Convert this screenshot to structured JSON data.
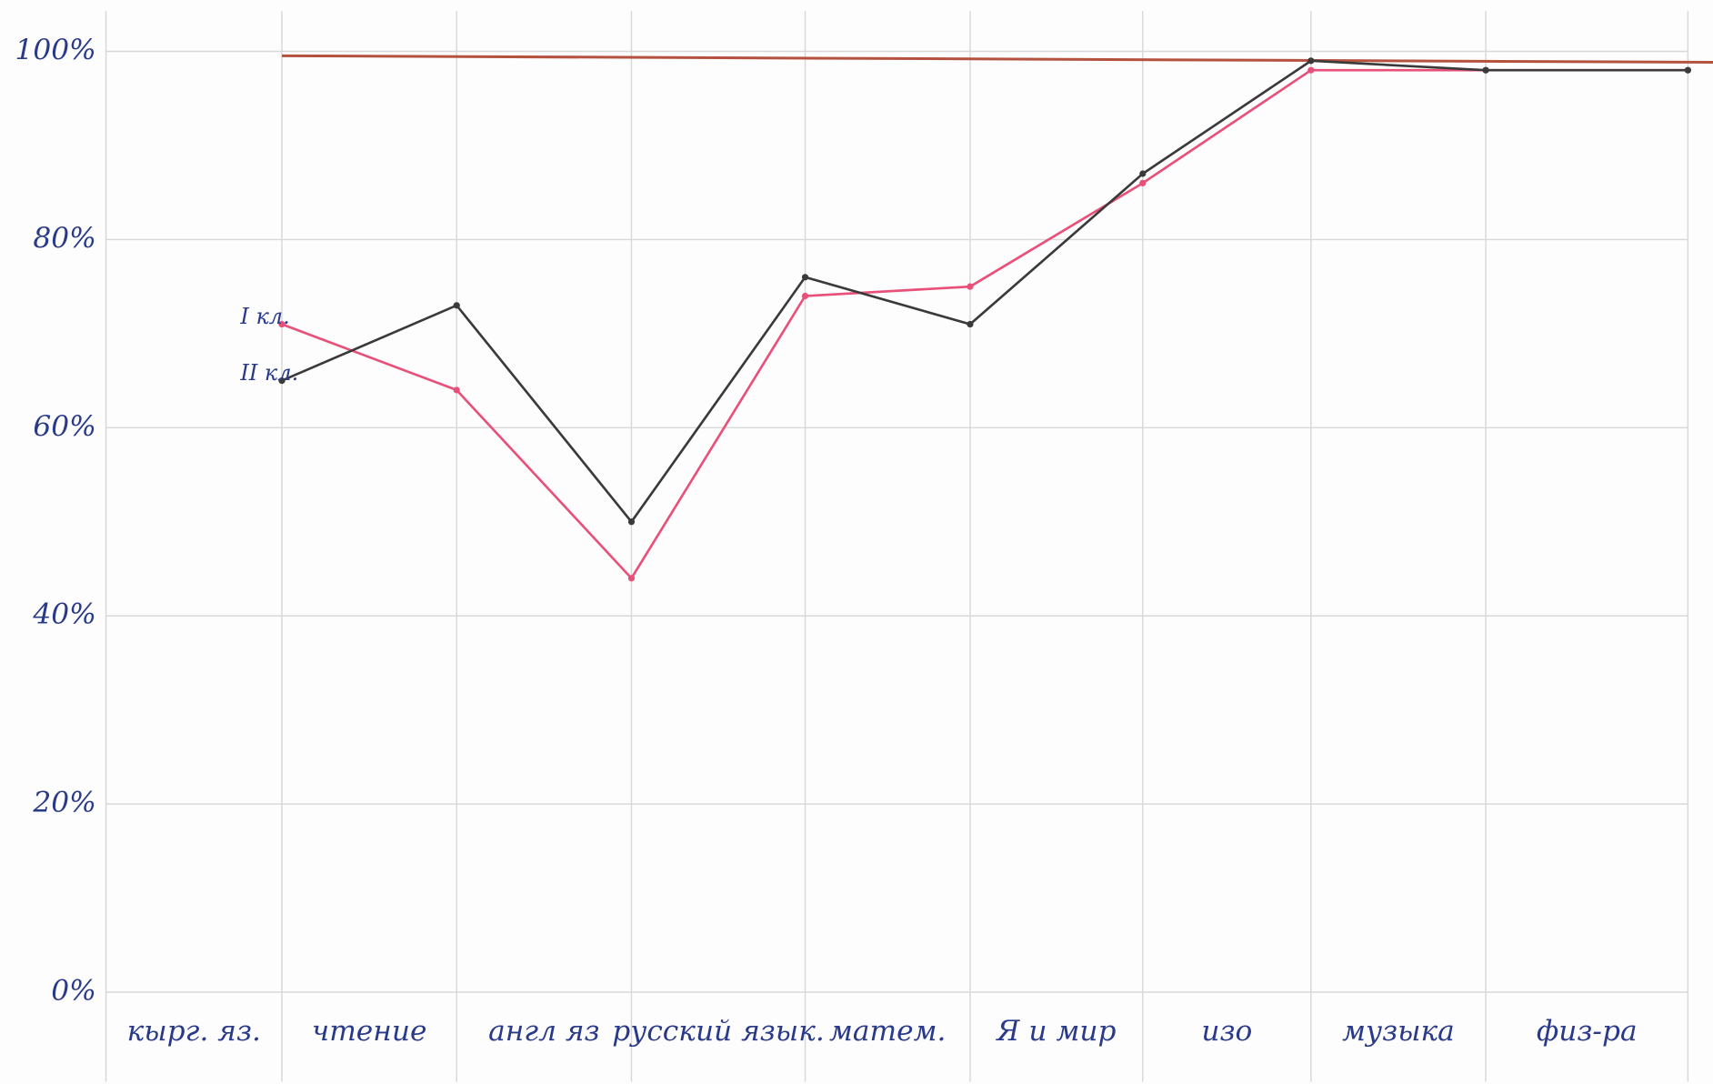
{
  "chart_data": {
    "type": "line",
    "categories": [
      "кырг. яз.",
      "чтение",
      "англ яз",
      "русский язык.",
      "матем.",
      "Я и мир",
      "изо",
      "музыка",
      "физ-ра"
    ],
    "series": [
      {
        "name": "I кл.",
        "color": "#e8507a",
        "values": [
          71,
          64,
          44,
          74,
          75,
          86,
          98,
          98,
          98
        ]
      },
      {
        "name": "II кл.",
        "color": "#3a3a3a",
        "values": [
          65,
          73,
          50,
          76,
          71,
          87,
          99,
          98,
          98
        ]
      }
    ],
    "ylim": [
      0,
      100
    ],
    "yticks": [
      {
        "value": 0,
        "label": "0%"
      },
      {
        "value": 20,
        "label": "20%"
      },
      {
        "value": 40,
        "label": "40%"
      },
      {
        "value": 60,
        "label": "60%"
      },
      {
        "value": 80,
        "label": "80%"
      },
      {
        "value": 100,
        "label": "100%"
      }
    ],
    "grid": true,
    "target_line": {
      "value": 100,
      "color": "#b5523f"
    }
  }
}
